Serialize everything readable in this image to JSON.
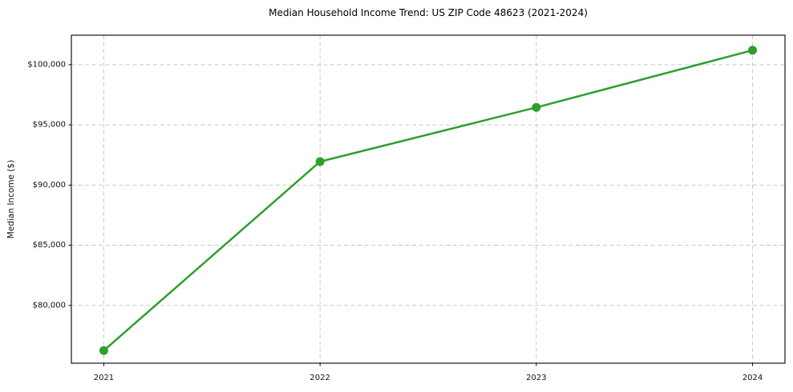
{
  "chart_data": {
    "type": "line",
    "title": "Median Household Income Trend: US ZIP Code 48623 (2021-2024)",
    "xlabel": "",
    "ylabel": "Median Income ($)",
    "series_name": "Median Household Income",
    "x": [
      2021,
      2022,
      2023,
      2024
    ],
    "values": [
      76250,
      91950,
      96450,
      101200
    ],
    "xticks": [
      2021,
      2022,
      2023,
      2024
    ],
    "xtick_labels": [
      "2021",
      "2022",
      "2023",
      "2024"
    ],
    "yticks": [
      80000,
      85000,
      90000,
      95000,
      100000
    ],
    "ytick_labels": [
      "$80,000",
      "$85,000",
      "$90,000",
      "$95,000",
      "$100,000"
    ],
    "xlim": [
      2020.85,
      2024.15
    ],
    "ylim": [
      75200,
      102450
    ],
    "grid": true,
    "grid_style": "dashed",
    "legend_position": "none",
    "line_color": "#2ca02c",
    "line_width": 2.5,
    "marker": "circle",
    "marker_size": 5.5,
    "grid_color": "#c9c9c9",
    "spine_color": "#000000",
    "text_color": "#111111",
    "background_color": "#ffffff"
  }
}
